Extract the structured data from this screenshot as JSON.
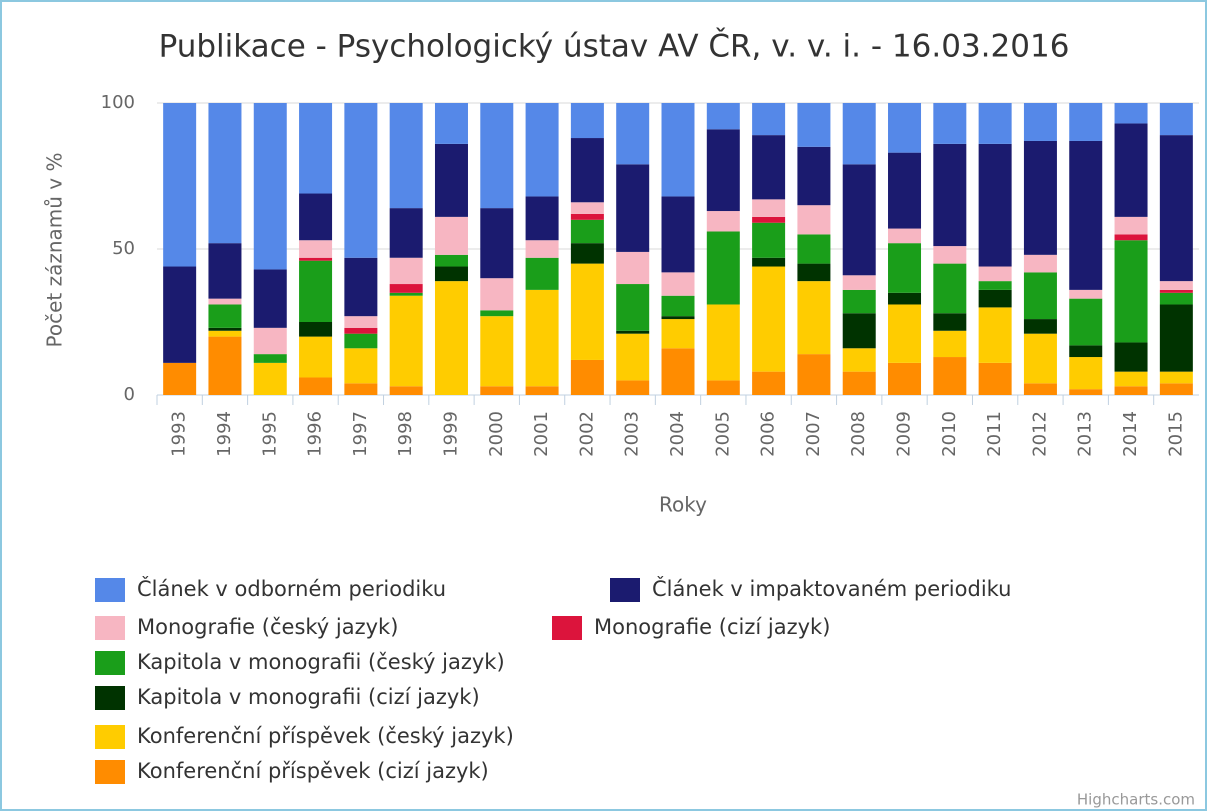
{
  "chart_data": {
    "type": "bar",
    "stacked": true,
    "title": "Publikace - Psychologický ústav AV ČR, v. v. i. - 16.03.2016",
    "x_label": "Roky",
    "y_label": "Počet záznamů v %",
    "credits": "Highcharts.com",
    "categories": [
      "1993",
      "1994",
      "1995",
      "1996",
      "1997",
      "1998",
      "1999",
      "2000",
      "2001",
      "2002",
      "2003",
      "2004",
      "2005",
      "2006",
      "2007",
      "2008",
      "2009",
      "2010",
      "2011",
      "2012",
      "2013",
      "2014",
      "2015"
    ],
    "ylim": [
      0,
      100
    ],
    "yticks": [
      0,
      50,
      100
    ],
    "grid": true,
    "series": [
      {
        "name": "Článek v odborném periodiku",
        "color": "#5588e8",
        "values": [
          56,
          48,
          57,
          31,
          53,
          36,
          14,
          36,
          32,
          12,
          21,
          32,
          9,
          11,
          15,
          21,
          17,
          14,
          14,
          13,
          13,
          7,
          11
        ]
      },
      {
        "name": "Článek v impaktovaném periodiku",
        "color": "#1b1b6f",
        "values": [
          33,
          19,
          20,
          16,
          20,
          17,
          25,
          24,
          15,
          22,
          30,
          26,
          28,
          22,
          20,
          38,
          26,
          35,
          42,
          39,
          51,
          32,
          50
        ]
      },
      {
        "name": "Monografie (český jazyk)",
        "color": "#f7b6c2",
        "values": [
          0,
          2,
          9,
          6,
          4,
          9,
          13,
          11,
          6,
          4,
          11,
          8,
          7,
          6,
          10,
          5,
          5,
          6,
          5,
          6,
          3,
          6,
          3
        ]
      },
      {
        "name": "Monografie (cizí jazyk)",
        "color": "#dc143c",
        "values": [
          0,
          0,
          0,
          1,
          2,
          3,
          0,
          0,
          0,
          2,
          0,
          0,
          0,
          2,
          0,
          0,
          0,
          0,
          0,
          0,
          0,
          2,
          1
        ]
      },
      {
        "name": "Kapitola v monografii (český jazyk)",
        "color": "#1a9e1a",
        "values": [
          0,
          8,
          3,
          21,
          5,
          1,
          4,
          2,
          11,
          8,
          16,
          7,
          25,
          12,
          10,
          8,
          17,
          17,
          3,
          16,
          16,
          35,
          4
        ]
      },
      {
        "name": "Kapitola v monografii (cizí jazyk)",
        "color": "#003300",
        "values": [
          0,
          1,
          0,
          5,
          0,
          0,
          5,
          0,
          0,
          7,
          1,
          1,
          0,
          3,
          6,
          12,
          4,
          6,
          6,
          5,
          4,
          10,
          23
        ]
      },
      {
        "name": "Konferenční příspěvek (český jazyk)",
        "color": "#ffcc00",
        "values": [
          0,
          2,
          11,
          14,
          12,
          31,
          39,
          24,
          33,
          33,
          16,
          10,
          26,
          36,
          25,
          8,
          20,
          9,
          19,
          17,
          11,
          5,
          4
        ]
      },
      {
        "name": "Konferenční příspěvek (cizí jazyk)",
        "color": "#ff8c00",
        "values": [
          11,
          20,
          0,
          6,
          4,
          3,
          0,
          3,
          3,
          12,
          5,
          16,
          5,
          8,
          14,
          8,
          11,
          13,
          11,
          4,
          2,
          3,
          4
        ]
      }
    ]
  }
}
